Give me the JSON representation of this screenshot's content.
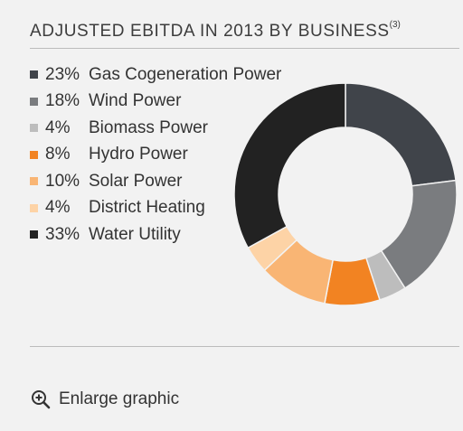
{
  "header": {
    "title": "ADJUSTED EBITDA IN 2013 BY BUSINESS",
    "footnote": "(3)"
  },
  "chart_data": {
    "type": "pie",
    "donut": true,
    "title": "ADJUSTED EBITDA IN 2013 BY BUSINESS",
    "legend_position": "left",
    "slices": [
      {
        "label": "Gas Cogeneration Power",
        "value": 23,
        "value_label": "23%",
        "color": "#40444a"
      },
      {
        "label": "Wind Power",
        "value": 18,
        "value_label": "18%",
        "color": "#7a7c7f"
      },
      {
        "label": "Biomass Power",
        "value": 4,
        "value_label": "4%",
        "color": "#bdbdbd"
      },
      {
        "label": "Hydro Power",
        "value": 8,
        "value_label": "8%",
        "color": "#f28322"
      },
      {
        "label": "Solar Power",
        "value": 10,
        "value_label": "10%",
        "color": "#f9b574"
      },
      {
        "label": "District Heating",
        "value": 4,
        "value_label": "4%",
        "color": "#fdd3a6"
      },
      {
        "label": "Water Utility",
        "value": 33,
        "value_label": "33%",
        "color": "#222222"
      }
    ]
  },
  "footer": {
    "enlarge_label": "Enlarge graphic",
    "icon": "zoom-in-icon"
  }
}
